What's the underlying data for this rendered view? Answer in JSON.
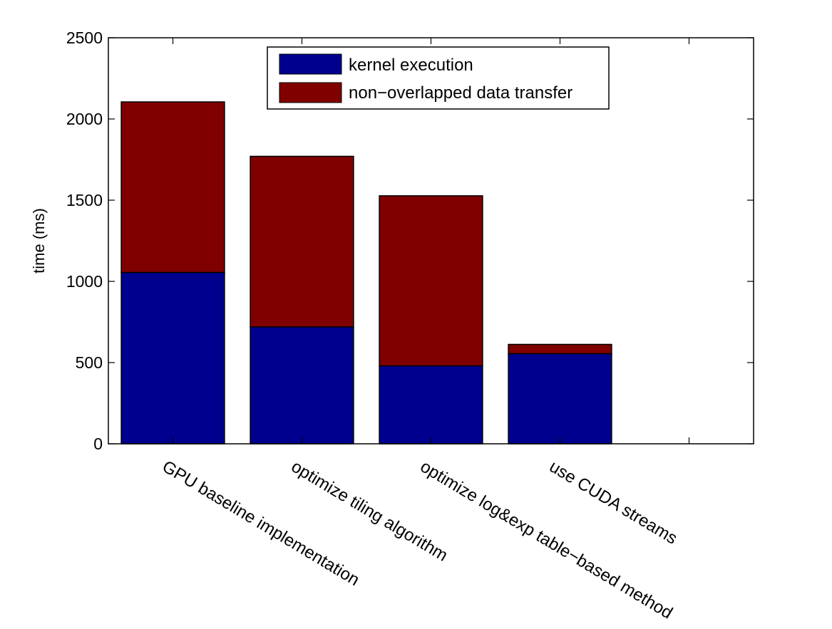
{
  "colors": {
    "kernel": "#00008F",
    "transfer": "#800000",
    "axis": "#000000",
    "background": "#ffffff"
  },
  "chart_data": {
    "type": "bar",
    "stacked": true,
    "categories": [
      "GPU baseline implementation",
      "optimize tiling algorithm",
      "optimize log&exp table−based method",
      "use CUDA streams"
    ],
    "series": [
      {
        "name": "kernel execution",
        "values": [
          1055,
          720,
          480,
          555
        ],
        "color": "#00008F"
      },
      {
        "name": "non−overlapped data transfer",
        "values": [
          1050,
          1050,
          1047,
          57
        ],
        "color": "#800000"
      }
    ],
    "ylabel": "time (ms)",
    "xlabel": "",
    "title": "",
    "ylim": [
      0,
      2500
    ],
    "yticks": [
      0,
      500,
      1000,
      1500,
      2000,
      2500
    ],
    "xlim": [
      0.5,
      5.5
    ],
    "grid": false,
    "legend_position": "top-center"
  }
}
